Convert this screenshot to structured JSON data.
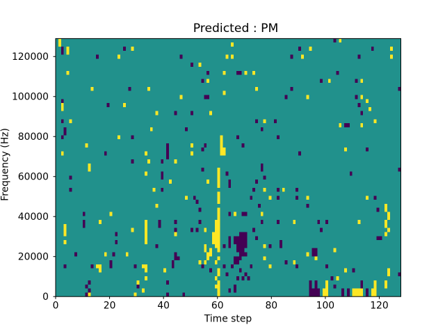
{
  "figure": {
    "title": "Predicted : PM",
    "xlabel": "Time step",
    "ylabel": "Frequency (Hz)"
  },
  "chart_data": {
    "type": "heatmap",
    "title": "Predicted : PM",
    "xlabel": "Time step",
    "ylabel": "Frequency (Hz)",
    "x_range": [
      0,
      128
    ],
    "y_range_hz": [
      0,
      128000
    ],
    "y_axis_display_max_hz": 129000,
    "x_ticks": [
      0,
      20,
      40,
      60,
      80,
      100,
      120
    ],
    "y_ticks": [
      0,
      20000,
      40000,
      60000,
      80000,
      100000,
      120000
    ],
    "grid": {
      "cols": 128,
      "rows": 64,
      "hz_per_row": 2000,
      "row_index_origin": "top"
    },
    "colors": {
      "background": "#21918c",
      "positive": "#fde725",
      "negative": "#440154",
      "figure_bg": "#ffffff"
    },
    "legend": null,
    "cells_yellow": [
      [
        1,
        0
      ],
      [
        1,
        1
      ],
      [
        4,
        2
      ],
      [
        4,
        3
      ],
      [
        28,
        2
      ],
      [
        23,
        4
      ],
      [
        63,
        4
      ],
      [
        65,
        1
      ],
      [
        65,
        4
      ],
      [
        105,
        0
      ],
      [
        94,
        2
      ],
      [
        124,
        2
      ],
      [
        124,
        4
      ],
      [
        91,
        4
      ],
      [
        53,
        6
      ],
      [
        4,
        8
      ],
      [
        62,
        8
      ],
      [
        70,
        8
      ],
      [
        73,
        8
      ],
      [
        56,
        10
      ],
      [
        101,
        10
      ],
      [
        113,
        10
      ],
      [
        13,
        12
      ],
      [
        34,
        12
      ],
      [
        74,
        12
      ],
      [
        62,
        13
      ],
      [
        46,
        14
      ],
      [
        93,
        14
      ],
      [
        113,
        14
      ],
      [
        115,
        15
      ],
      [
        2,
        16
      ],
      [
        2,
        17
      ],
      [
        25,
        16
      ],
      [
        116,
        17
      ],
      [
        37,
        18
      ],
      [
        57,
        18
      ],
      [
        5,
        20
      ],
      [
        77,
        20
      ],
      [
        118,
        20
      ],
      [
        105,
        21
      ],
      [
        113,
        21
      ],
      [
        35,
        22
      ],
      [
        23,
        24
      ],
      [
        61,
        24
      ],
      [
        61,
        25
      ],
      [
        61,
        26
      ],
      [
        11,
        26
      ],
      [
        50,
        26
      ],
      [
        2,
        28
      ],
      [
        33,
        28
      ],
      [
        50,
        28
      ],
      [
        61,
        27
      ],
      [
        62,
        27
      ],
      [
        61,
        28
      ],
      [
        62,
        28
      ],
      [
        107,
        27
      ],
      [
        34,
        30
      ],
      [
        44,
        30
      ],
      [
        12,
        31
      ],
      [
        12,
        32
      ],
      [
        60,
        32
      ],
      [
        60,
        33
      ],
      [
        60,
        34
      ],
      [
        60,
        35
      ],
      [
        60,
        36
      ],
      [
        33,
        33
      ],
      [
        42,
        35
      ],
      [
        56,
        35
      ],
      [
        36,
        37
      ],
      [
        77,
        37
      ],
      [
        84,
        37
      ],
      [
        60,
        38
      ],
      [
        60,
        39
      ],
      [
        60,
        40
      ],
      [
        48,
        39
      ],
      [
        79,
        39
      ],
      [
        93,
        39
      ],
      [
        115,
        39
      ],
      [
        37,
        41
      ],
      [
        122,
        41
      ],
      [
        122,
        42
      ],
      [
        60,
        42
      ],
      [
        60,
        43
      ],
      [
        60,
        44
      ],
      [
        20,
        43
      ],
      [
        66,
        43
      ],
      [
        76,
        43
      ],
      [
        123,
        43
      ],
      [
        123,
        44
      ],
      [
        60,
        45
      ],
      [
        59,
        45
      ],
      [
        33,
        45
      ],
      [
        16,
        45
      ],
      [
        88,
        45
      ],
      [
        112,
        45
      ],
      [
        122,
        45
      ],
      [
        59,
        46
      ],
      [
        60,
        46
      ],
      [
        33,
        46
      ],
      [
        3,
        46
      ],
      [
        122,
        46
      ],
      [
        55,
        47
      ],
      [
        59,
        47
      ],
      [
        60,
        47
      ],
      [
        33,
        47
      ],
      [
        3,
        47
      ],
      [
        28,
        47
      ],
      [
        123,
        47
      ],
      [
        58,
        48
      ],
      [
        59,
        48
      ],
      [
        60,
        48
      ],
      [
        33,
        48
      ],
      [
        3,
        48
      ],
      [
        44,
        48
      ],
      [
        122,
        48
      ],
      [
        58,
        49
      ],
      [
        59,
        49
      ],
      [
        60,
        49
      ],
      [
        33,
        49
      ],
      [
        58,
        50
      ],
      [
        59,
        50
      ],
      [
        60,
        50
      ],
      [
        33,
        50
      ],
      [
        3,
        50
      ],
      [
        59,
        51
      ],
      [
        60,
        51
      ],
      [
        55,
        51
      ],
      [
        77,
        51
      ],
      [
        60,
        52
      ],
      [
        57,
        52
      ],
      [
        55,
        52
      ],
      [
        103,
        52
      ],
      [
        57,
        53
      ],
      [
        18,
        53
      ],
      [
        26,
        53
      ],
      [
        93,
        53
      ],
      [
        56,
        53
      ],
      [
        60,
        54
      ],
      [
        56,
        54
      ],
      [
        96,
        54
      ],
      [
        77,
        54
      ],
      [
        59,
        55
      ],
      [
        53,
        55
      ],
      [
        55,
        55
      ],
      [
        88,
        55
      ],
      [
        15,
        56
      ],
      [
        16,
        56
      ],
      [
        32,
        56
      ],
      [
        33,
        56
      ],
      [
        40,
        57
      ],
      [
        16,
        57
      ],
      [
        33,
        57
      ],
      [
        60,
        57
      ],
      [
        79,
        56
      ],
      [
        60,
        58
      ],
      [
        107,
        57
      ],
      [
        123,
        57
      ],
      [
        123,
        58
      ],
      [
        59,
        59
      ],
      [
        33,
        59
      ],
      [
        104,
        59
      ],
      [
        60,
        60
      ],
      [
        30,
        60
      ],
      [
        100,
        60
      ],
      [
        100,
        61
      ],
      [
        118,
        60
      ],
      [
        118,
        61
      ],
      [
        122,
        60
      ],
      [
        122,
        61
      ],
      [
        59,
        61
      ],
      [
        60,
        61
      ],
      [
        60,
        62
      ],
      [
        32,
        62
      ],
      [
        99,
        62
      ],
      [
        100,
        62
      ],
      [
        110,
        62
      ],
      [
        111,
        62
      ],
      [
        112,
        62
      ],
      [
        113,
        62
      ],
      [
        117,
        62
      ],
      [
        118,
        62
      ],
      [
        60,
        63
      ],
      [
        12,
        63
      ],
      [
        29,
        63
      ],
      [
        99,
        63
      ],
      [
        100,
        63
      ],
      [
        110,
        63
      ],
      [
        111,
        63
      ],
      [
        112,
        63
      ],
      [
        113,
        63
      ],
      [
        117,
        63
      ],
      [
        118,
        63
      ]
    ],
    "cells_dark": [
      [
        2,
        2
      ],
      [
        2,
        3
      ],
      [
        25,
        2
      ],
      [
        103,
        0
      ],
      [
        117,
        2
      ],
      [
        90,
        2
      ],
      [
        15,
        4
      ],
      [
        46,
        4
      ],
      [
        87,
        4
      ],
      [
        112,
        4
      ],
      [
        50,
        6
      ],
      [
        56,
        8
      ],
      [
        67,
        8
      ],
      [
        68,
        8
      ],
      [
        104,
        8
      ],
      [
        54,
        10
      ],
      [
        98,
        10
      ],
      [
        111,
        10
      ],
      [
        27,
        12
      ],
      [
        87,
        12
      ],
      [
        127,
        12
      ],
      [
        55,
        14
      ],
      [
        56,
        14
      ],
      [
        85,
        14
      ],
      [
        111,
        14
      ],
      [
        2,
        15
      ],
      [
        19,
        16
      ],
      [
        112,
        16
      ],
      [
        44,
        18
      ],
      [
        50,
        18
      ],
      [
        113,
        18
      ],
      [
        2,
        20
      ],
      [
        74,
        20
      ],
      [
        81,
        20
      ],
      [
        3,
        22
      ],
      [
        3,
        23
      ],
      [
        48,
        22
      ],
      [
        76,
        22
      ],
      [
        2,
        24
      ],
      [
        28,
        24
      ],
      [
        67,
        24
      ],
      [
        82,
        24
      ],
      [
        41,
        26
      ],
      [
        41,
        27
      ],
      [
        41,
        28
      ],
      [
        41,
        29
      ],
      [
        55,
        26
      ],
      [
        69,
        26
      ],
      [
        107,
        21
      ],
      [
        108,
        21
      ],
      [
        18,
        28
      ],
      [
        54,
        27
      ],
      [
        90,
        28
      ],
      [
        115,
        27
      ],
      [
        28,
        30
      ],
      [
        39,
        30
      ],
      [
        76,
        31
      ],
      [
        54,
        32
      ],
      [
        76,
        32
      ],
      [
        127,
        32
      ],
      [
        63,
        33
      ],
      [
        109,
        33
      ],
      [
        77,
        34
      ],
      [
        5,
        34
      ],
      [
        39,
        33
      ],
      [
        39,
        34
      ],
      [
        64,
        35
      ],
      [
        64,
        36
      ],
      [
        74,
        35
      ],
      [
        5,
        37
      ],
      [
        39,
        37
      ],
      [
        73,
        37
      ],
      [
        82,
        37
      ],
      [
        89,
        37
      ],
      [
        72,
        39
      ],
      [
        82,
        39
      ],
      [
        89,
        39
      ],
      [
        51,
        39
      ],
      [
        118,
        39
      ],
      [
        52,
        40
      ],
      [
        75,
        41
      ],
      [
        93,
        41
      ],
      [
        53,
        42
      ],
      [
        119,
        42
      ],
      [
        64,
        43
      ],
      [
        10,
        43
      ],
      [
        69,
        43
      ],
      [
        70,
        43
      ],
      [
        10,
        45
      ],
      [
        10,
        46
      ],
      [
        38,
        45
      ],
      [
        38,
        46
      ],
      [
        44,
        45
      ],
      [
        44,
        47
      ],
      [
        53,
        45
      ],
      [
        76,
        45
      ],
      [
        82,
        45
      ],
      [
        97,
        45
      ],
      [
        100,
        45
      ],
      [
        50,
        47
      ],
      [
        52,
        47
      ],
      [
        73,
        47
      ],
      [
        98,
        47
      ],
      [
        22,
        48
      ],
      [
        68,
        48
      ],
      [
        69,
        48
      ],
      [
        70,
        48
      ],
      [
        64,
        49
      ],
      [
        66,
        49
      ],
      [
        67,
        49
      ],
      [
        68,
        49
      ],
      [
        69,
        49
      ],
      [
        70,
        49
      ],
      [
        74,
        49
      ],
      [
        119,
        49
      ],
      [
        120,
        49
      ],
      [
        22,
        50
      ],
      [
        64,
        50
      ],
      [
        66,
        50
      ],
      [
        67,
        50
      ],
      [
        68,
        50
      ],
      [
        69,
        50
      ],
      [
        70,
        50
      ],
      [
        83,
        50
      ],
      [
        37,
        51
      ],
      [
        64,
        51
      ],
      [
        67,
        51
      ],
      [
        68,
        51
      ],
      [
        69,
        51
      ],
      [
        70,
        51
      ],
      [
        79,
        51
      ],
      [
        83,
        51
      ],
      [
        62,
        51
      ],
      [
        67,
        52
      ],
      [
        68,
        52
      ],
      [
        69,
        52
      ],
      [
        95,
        52
      ],
      [
        96,
        52
      ],
      [
        7,
        53
      ],
      [
        21,
        53
      ],
      [
        44,
        53
      ],
      [
        68,
        53
      ],
      [
        69,
        53
      ],
      [
        70,
        53
      ],
      [
        95,
        53
      ],
      [
        96,
        53
      ],
      [
        44,
        54
      ],
      [
        45,
        54
      ],
      [
        66,
        54
      ],
      [
        67,
        54
      ],
      [
        68,
        54
      ],
      [
        20,
        55
      ],
      [
        43,
        55
      ],
      [
        66,
        55
      ],
      [
        67,
        55
      ],
      [
        85,
        55
      ],
      [
        3,
        56
      ],
      [
        13,
        56
      ],
      [
        20,
        56
      ],
      [
        29,
        56
      ],
      [
        43,
        56
      ],
      [
        54,
        56
      ],
      [
        62,
        56
      ],
      [
        65,
        56
      ],
      [
        72,
        56
      ],
      [
        89,
        56
      ],
      [
        100,
        56
      ],
      [
        57,
        57
      ],
      [
        68,
        57
      ],
      [
        110,
        57
      ],
      [
        63,
        58
      ],
      [
        70,
        58
      ],
      [
        127,
        58
      ],
      [
        67,
        59
      ],
      [
        69,
        59
      ],
      [
        71,
        59
      ],
      [
        102,
        59
      ],
      [
        94,
        60
      ],
      [
        96,
        60
      ],
      [
        113,
        60
      ],
      [
        12,
        60
      ],
      [
        41,
        60
      ],
      [
        94,
        61
      ],
      [
        96,
        61
      ],
      [
        113,
        61
      ],
      [
        103,
        61
      ],
      [
        30,
        61
      ],
      [
        11,
        61
      ],
      [
        66,
        61
      ],
      [
        94,
        62
      ],
      [
        95,
        62
      ],
      [
        96,
        62
      ],
      [
        97,
        62
      ],
      [
        108,
        62
      ],
      [
        115,
        62
      ],
      [
        106,
        62
      ],
      [
        64,
        62
      ],
      [
        66,
        62
      ],
      [
        12,
        62
      ],
      [
        94,
        63
      ],
      [
        95,
        63
      ],
      [
        96,
        63
      ],
      [
        97,
        63
      ],
      [
        108,
        63
      ],
      [
        115,
        63
      ],
      [
        106,
        63
      ],
      [
        11,
        63
      ],
      [
        41,
        63
      ],
      [
        47,
        63
      ]
    ]
  }
}
